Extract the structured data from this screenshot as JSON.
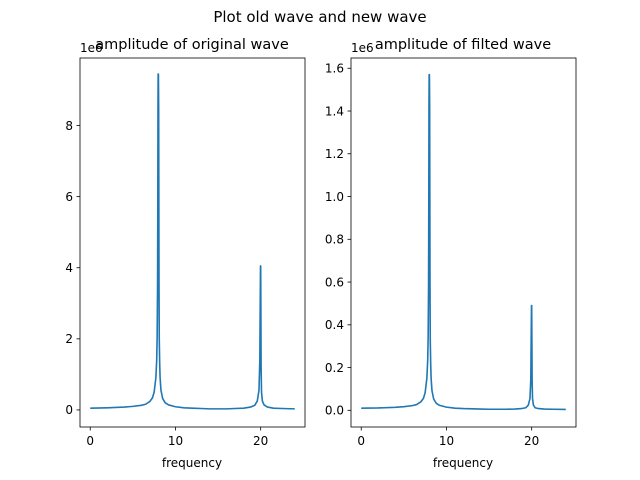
{
  "figure": {
    "suptitle": "Plot old wave and new wave",
    "line_color": "#1f77b4"
  },
  "chart_data": [
    {
      "type": "line",
      "title": "amplitude of original wave",
      "xlabel": "frequency",
      "ylabel": "",
      "offset_text": "1e6",
      "xlim": [
        -1.2,
        25.2
      ],
      "ylim": [
        -0.48,
        9.9
      ],
      "xticks": [
        0,
        10,
        20
      ],
      "xtick_labels": [
        "0",
        "10",
        "20"
      ],
      "yticks": [
        0,
        2,
        4,
        6,
        8
      ],
      "ytick_labels": [
        "0",
        "2",
        "4",
        "6",
        "8"
      ],
      "grid": false,
      "series": [
        {
          "x": [
            0,
            2,
            4,
            5,
            6,
            6.5,
            7,
            7.3,
            7.5,
            7.7,
            7.8,
            7.85,
            7.9,
            7.93,
            7.95,
            7.97,
            8.0,
            8.03,
            8.05,
            8.07,
            8.1,
            8.15,
            8.2,
            8.3,
            8.5,
            8.8,
            9.2,
            10,
            11,
            12,
            13,
            14,
            15,
            16,
            17,
            18,
            18.8,
            19.3,
            19.6,
            19.8,
            19.9,
            19.95,
            19.98,
            20.0,
            20.02,
            20.05,
            20.1,
            20.2,
            20.4,
            20.8,
            21.5,
            22.5,
            24.0
          ],
          "y": [
            0.05,
            0.06,
            0.08,
            0.1,
            0.13,
            0.16,
            0.24,
            0.34,
            0.5,
            0.9,
            1.4,
            2.0,
            3.5,
            6.0,
            8.5,
            9.45,
            9.45,
            8.5,
            6.0,
            3.5,
            2.0,
            1.3,
            0.9,
            0.55,
            0.32,
            0.2,
            0.14,
            0.09,
            0.06,
            0.05,
            0.04,
            0.03,
            0.03,
            0.03,
            0.04,
            0.05,
            0.08,
            0.13,
            0.25,
            0.55,
            1.4,
            3.2,
            4.05,
            4.05,
            3.0,
            1.2,
            0.5,
            0.25,
            0.14,
            0.08,
            0.05,
            0.04,
            0.03
          ]
        }
      ]
    },
    {
      "type": "line",
      "title": "amplitude of filted wave",
      "xlabel": "frequency",
      "ylabel": "",
      "offset_text": "1e6",
      "xlim": [
        -1.2,
        25.2
      ],
      "ylim": [
        -0.078,
        1.648
      ],
      "xticks": [
        0,
        10,
        20
      ],
      "xtick_labels": [
        "0",
        "10",
        "20"
      ],
      "yticks": [
        0.0,
        0.2,
        0.4,
        0.6,
        0.8,
        1.0,
        1.2,
        1.4,
        1.6
      ],
      "ytick_labels": [
        "0.0",
        "0.2",
        "0.4",
        "0.6",
        "0.8",
        "1.0",
        "1.2",
        "1.4",
        "1.6"
      ],
      "grid": false,
      "series": [
        {
          "x": [
            0,
            2,
            4,
            5,
            6,
            6.5,
            7,
            7.3,
            7.5,
            7.7,
            7.8,
            7.85,
            7.9,
            7.93,
            7.95,
            7.97,
            8.0,
            8.03,
            8.05,
            8.07,
            8.1,
            8.15,
            8.2,
            8.3,
            8.5,
            8.8,
            9.2,
            10,
            11,
            12,
            13,
            14,
            15,
            16,
            17,
            18,
            18.8,
            19.3,
            19.6,
            19.8,
            19.9,
            19.95,
            19.98,
            20.0,
            20.02,
            20.05,
            20.1,
            20.2,
            20.4,
            20.8,
            21.5,
            22.5,
            24.0
          ],
          "y": [
            0.01,
            0.011,
            0.014,
            0.017,
            0.022,
            0.027,
            0.04,
            0.056,
            0.083,
            0.15,
            0.233,
            0.333,
            0.583,
            1.0,
            1.417,
            1.57,
            1.57,
            1.417,
            1.0,
            0.583,
            0.333,
            0.217,
            0.15,
            0.092,
            0.053,
            0.033,
            0.023,
            0.015,
            0.01,
            0.008,
            0.007,
            0.006,
            0.005,
            0.005,
            0.005,
            0.006,
            0.008,
            0.012,
            0.024,
            0.055,
            0.15,
            0.38,
            0.49,
            0.49,
            0.36,
            0.14,
            0.055,
            0.025,
            0.012,
            0.008,
            0.006,
            0.005,
            0.004
          ]
        }
      ]
    }
  ]
}
